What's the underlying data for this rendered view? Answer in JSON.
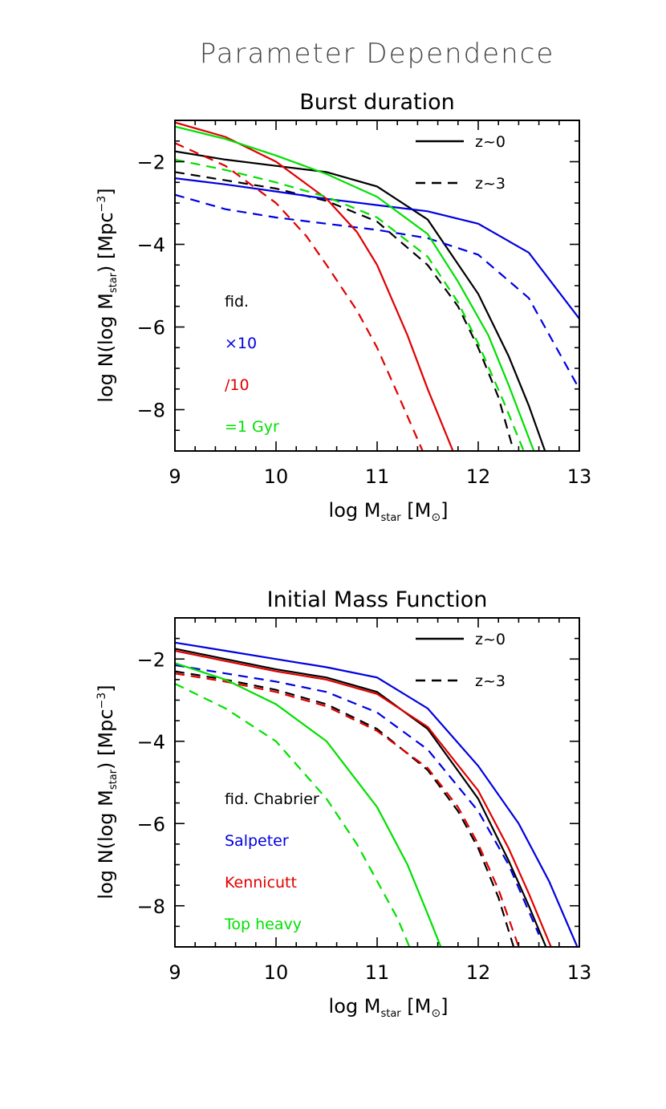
{
  "figure_title": "Parameter Dependence",
  "colors": {
    "black": "#000000",
    "blue": "#0000e0",
    "red": "#e00000",
    "green": "#00e000"
  },
  "chart_data": [
    {
      "id": "burst",
      "type": "line",
      "title": "Burst duration",
      "xlabel": {
        "main": "log M",
        "sub": "star",
        "unit_open": " [M",
        "unit_sub": "⊙",
        "unit_close": "]"
      },
      "ylabel": {
        "main": "log N(log M",
        "sub": "star",
        "mid": ")  [Mpc",
        "sup": "−3",
        "end": "]"
      },
      "xlim": [
        9,
        13
      ],
      "ylim": [
        -9,
        -1
      ],
      "xticks": [
        9,
        10,
        11,
        12,
        13
      ],
      "xtick_labels": [
        "9",
        "10",
        "11",
        "12",
        "13"
      ],
      "yticks": [
        -2,
        -4,
        -6,
        -8
      ],
      "ytick_labels": [
        "−2",
        "−4",
        "−6",
        "−8"
      ],
      "style_legend": [
        {
          "label": "z~0",
          "dash": "solid"
        },
        {
          "label": "z~3",
          "dash": "dashed"
        }
      ],
      "color_legend": [
        {
          "label": "fid.",
          "color": "#000000"
        },
        {
          "label": "×10",
          "color": "#0000e0"
        },
        {
          "label": "/10",
          "color": "#e00000"
        },
        {
          "label": "=1 Gyr",
          "color": "#00e000"
        }
      ],
      "series": [
        {
          "color": "#000000",
          "dash": "solid",
          "x": [
            9,
            9.5,
            10,
            10.5,
            11,
            11.5,
            12,
            12.3,
            12.5,
            12.66
          ],
          "y": [
            -1.75,
            -1.95,
            -2.1,
            -2.25,
            -2.6,
            -3.4,
            -5.2,
            -6.7,
            -7.9,
            -9
          ]
        },
        {
          "color": "#000000",
          "dash": "dashed",
          "x": [
            9,
            9.5,
            10,
            10.5,
            11,
            11.5,
            11.8,
            12,
            12.2,
            12.35
          ],
          "y": [
            -2.25,
            -2.45,
            -2.65,
            -2.95,
            -3.45,
            -4.5,
            -5.5,
            -6.5,
            -7.7,
            -9
          ]
        },
        {
          "color": "#0000e0",
          "dash": "solid",
          "x": [
            9,
            9.5,
            10,
            10.5,
            11,
            11.5,
            12,
            12.5,
            13
          ],
          "y": [
            -2.4,
            -2.55,
            -2.72,
            -2.9,
            -3.05,
            -3.2,
            -3.5,
            -4.2,
            -5.8
          ]
        },
        {
          "color": "#0000e0",
          "dash": "dashed",
          "x": [
            9,
            9.5,
            10,
            10.5,
            11,
            11.5,
            12,
            12.5,
            13
          ],
          "y": [
            -2.8,
            -3.15,
            -3.35,
            -3.5,
            -3.65,
            -3.85,
            -4.25,
            -5.3,
            -7.5
          ]
        },
        {
          "color": "#e00000",
          "dash": "solid",
          "x": [
            9,
            9.5,
            10,
            10.5,
            10.8,
            11,
            11.3,
            11.5,
            11.75
          ],
          "y": [
            -1.05,
            -1.4,
            -2.0,
            -2.9,
            -3.7,
            -4.5,
            -6.2,
            -7.5,
            -9
          ]
        },
        {
          "color": "#e00000",
          "dash": "dashed",
          "x": [
            9,
            9.5,
            10,
            10.3,
            10.5,
            10.8,
            11,
            11.2,
            11.45
          ],
          "y": [
            -1.55,
            -2.1,
            -3.0,
            -3.8,
            -4.5,
            -5.6,
            -6.5,
            -7.6,
            -9
          ]
        },
        {
          "color": "#00e000",
          "dash": "solid",
          "x": [
            9,
            9.5,
            10,
            10.5,
            11,
            11.5,
            11.8,
            12.1,
            12.3,
            12.55
          ],
          "y": [
            -1.15,
            -1.45,
            -1.85,
            -2.3,
            -2.85,
            -3.75,
            -4.9,
            -6.2,
            -7.4,
            -9
          ]
        },
        {
          "color": "#00e000",
          "dash": "dashed",
          "x": [
            9,
            9.5,
            10,
            10.5,
            11,
            11.5,
            11.8,
            12,
            12.25,
            12.45
          ],
          "y": [
            -1.95,
            -2.2,
            -2.5,
            -2.85,
            -3.35,
            -4.3,
            -5.4,
            -6.4,
            -7.8,
            -9
          ]
        }
      ]
    },
    {
      "id": "imf",
      "type": "line",
      "title": "Initial Mass Function",
      "xlabel": {
        "main": "log M",
        "sub": "star",
        "unit_open": " [M",
        "unit_sub": "⊙",
        "unit_close": "]"
      },
      "ylabel": {
        "main": "log N(log M",
        "sub": "star",
        "mid": ")  [Mpc",
        "sup": "−3",
        "end": "]"
      },
      "xlim": [
        9,
        13
      ],
      "ylim": [
        -9,
        -1
      ],
      "xticks": [
        9,
        10,
        11,
        12,
        13
      ],
      "xtick_labels": [
        "9",
        "10",
        "11",
        "12",
        "13"
      ],
      "yticks": [
        -2,
        -4,
        -6,
        -8
      ],
      "ytick_labels": [
        "−2",
        "−4",
        "−6",
        "−8"
      ],
      "style_legend": [
        {
          "label": "z~0",
          "dash": "solid"
        },
        {
          "label": "z~3",
          "dash": "dashed"
        }
      ],
      "color_legend": [
        {
          "label": "fid. Chabrier",
          "color": "#000000"
        },
        {
          "label": "Salpeter",
          "color": "#0000e0"
        },
        {
          "label": "Kennicutt",
          "color": "#e00000"
        },
        {
          "label": "Top heavy",
          "color": "#00e000"
        }
      ],
      "series": [
        {
          "color": "#000000",
          "dash": "solid",
          "x": [
            9,
            9.5,
            10,
            10.5,
            11,
            11.5,
            12,
            12.3,
            12.5,
            12.67
          ],
          "y": [
            -1.75,
            -2.0,
            -2.25,
            -2.45,
            -2.8,
            -3.7,
            -5.4,
            -6.9,
            -8.0,
            -9
          ]
        },
        {
          "color": "#000000",
          "dash": "dashed",
          "x": [
            9,
            9.5,
            10,
            10.5,
            11,
            11.5,
            11.8,
            12,
            12.2,
            12.35
          ],
          "y": [
            -2.3,
            -2.5,
            -2.75,
            -3.1,
            -3.7,
            -4.7,
            -5.7,
            -6.6,
            -7.8,
            -9
          ]
        },
        {
          "color": "#0000e0",
          "dash": "solid",
          "x": [
            9,
            9.5,
            10,
            10.5,
            11,
            11.5,
            12,
            12.4,
            12.7,
            12.98
          ],
          "y": [
            -1.6,
            -1.8,
            -2.0,
            -2.2,
            -2.45,
            -3.2,
            -4.6,
            -6.0,
            -7.4,
            -9
          ]
        },
        {
          "color": "#0000e0",
          "dash": "dashed",
          "x": [
            9,
            9.5,
            10,
            10.5,
            11,
            11.5,
            12,
            12.3,
            12.6
          ],
          "y": [
            -2.15,
            -2.35,
            -2.55,
            -2.8,
            -3.3,
            -4.2,
            -5.7,
            -7.0,
            -8.7
          ]
        },
        {
          "color": "#e00000",
          "dash": "solid",
          "x": [
            9,
            9.5,
            10,
            10.5,
            11,
            11.5,
            12,
            12.3,
            12.5,
            12.72
          ],
          "y": [
            -1.8,
            -2.05,
            -2.3,
            -2.5,
            -2.85,
            -3.65,
            -5.2,
            -6.6,
            -7.7,
            -9
          ]
        },
        {
          "color": "#e00000",
          "dash": "dashed",
          "x": [
            9,
            9.5,
            10,
            10.5,
            11,
            11.5,
            11.8,
            12,
            12.2,
            12.4
          ],
          "y": [
            -2.35,
            -2.55,
            -2.8,
            -3.15,
            -3.75,
            -4.65,
            -5.6,
            -6.5,
            -7.6,
            -9
          ]
        },
        {
          "color": "#00e000",
          "dash": "solid",
          "x": [
            9,
            9.5,
            10,
            10.5,
            11,
            11.3,
            11.5,
            11.63
          ],
          "y": [
            -2.1,
            -2.5,
            -3.1,
            -4.0,
            -5.6,
            -7.0,
            -8.2,
            -9
          ]
        },
        {
          "color": "#00e000",
          "dash": "dashed",
          "x": [
            9,
            9.5,
            10,
            10.5,
            10.8,
            11,
            11.2,
            11.32
          ],
          "y": [
            -2.6,
            -3.2,
            -4.0,
            -5.4,
            -6.5,
            -7.4,
            -8.3,
            -9
          ]
        }
      ]
    }
  ]
}
